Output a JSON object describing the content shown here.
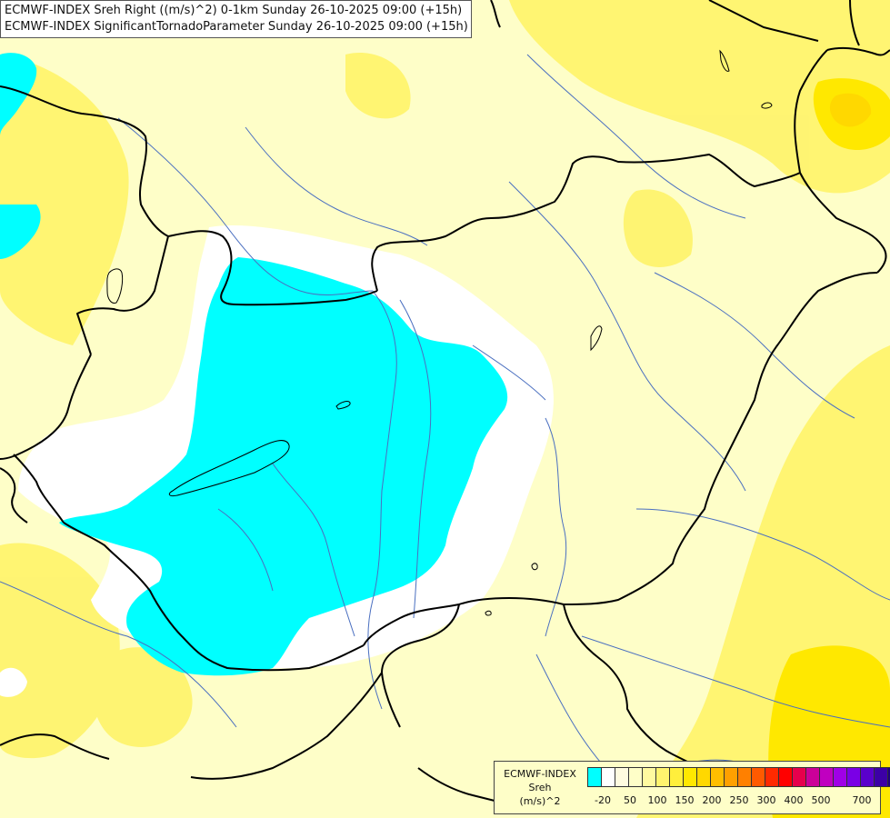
{
  "header": {
    "line1": "ECMWF-INDEX Sreh Right ((m/s)^2) 0-1km Sunday 26-10-2025 09:00 (+15h)",
    "line2": "ECMWF-INDEX SignificantTornadoParameter Sunday 26-10-2025 09:00 (+15h)"
  },
  "legend": {
    "title": "ECMWF-INDEX",
    "variable": "Sreh",
    "unit": "(m/s)^2",
    "tick_labels": [
      "-20",
      "50",
      "100",
      "150",
      "200",
      "250",
      "300",
      "400",
      "500",
      "700"
    ],
    "colors": [
      "#00ffff",
      "#ffffff",
      "#fffce0",
      "#fefec8",
      "#fffaa0",
      "#fff46e",
      "#ffef3c",
      "#ffe800",
      "#ffd800",
      "#ffbe00",
      "#ffa000",
      "#ff8000",
      "#ff5a00",
      "#ff2a00",
      "#ff0000",
      "#e6004c",
      "#cc0099",
      "#c000c0",
      "#a000e6",
      "#7a00e6",
      "#5a00cc",
      "#3c00a6",
      "#1e0080",
      "#00006e"
    ]
  },
  "colors": {
    "negative_helicity": "#00ffff",
    "low_helicity": "#fefec8",
    "moderate_helicity": "#fff46e",
    "elevated_helicity": "#ffe800",
    "border_line": "#000000",
    "river_line": "#4a6fc0"
  }
}
